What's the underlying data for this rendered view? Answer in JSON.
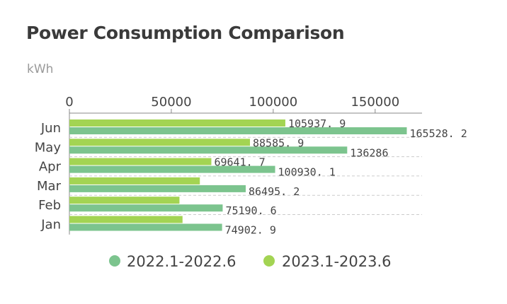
{
  "title": "Power Consumption Comparison",
  "unit": "kWh",
  "colors": {
    "series1": "#7cc48e",
    "series2": "#a3d453",
    "axis": "#888888",
    "grid": "#cccccc"
  },
  "chart_data": {
    "type": "bar",
    "orientation": "horizontal",
    "title": "Power Consumption Comparison",
    "ylabel": "kWh",
    "categories": [
      "Jun",
      "May",
      "Apr",
      "Mar",
      "Feb",
      "Jan"
    ],
    "series": [
      {
        "name": "2022.1-2022.6",
        "values": [
          165528.2,
          136286,
          100930.1,
          86495.2,
          75190.6,
          74902.9
        ],
        "labels": [
          "165528. 2",
          "136286",
          "100930. 1",
          "86495. 2",
          "75190. 6",
          "74902. 9"
        ]
      },
      {
        "name": "2023.1-2023.6",
        "values": [
          105937.9,
          88585.9,
          69641.7,
          64000,
          54000,
          55500
        ],
        "labels": [
          "105937. 9",
          "88585. 9",
          "69641. 7",
          "",
          "",
          ""
        ]
      }
    ],
    "xticks": [
      "0",
      "50000",
      "100000",
      "150000"
    ],
    "xlim": [
      0,
      172000
    ],
    "axis_position": "top",
    "grid": true,
    "legend_position": "bottom"
  }
}
